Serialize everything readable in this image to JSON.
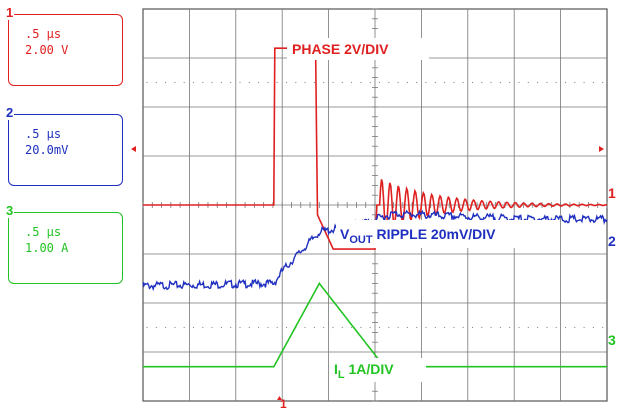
{
  "channels": [
    {
      "num": "1",
      "time": ".5 μs",
      "scale": "2.00 V",
      "color": "#e02020"
    },
    {
      "num": "2",
      "time": ".5 μs",
      "scale": "20.0mV",
      "color": "#1f2fc0"
    },
    {
      "num": "3",
      "time": ".5 μs",
      "scale": "1.00 A",
      "color": "#22c422"
    }
  ],
  "annotations": {
    "phase": "PHASE 2V/DIV",
    "vout_main": "V",
    "vout_sub": "OUT",
    "vout_rest": " RIPPLE  20mV/DIV",
    "il_main": "I",
    "il_sub": "L",
    "il_rest": "  1A/DIV"
  },
  "markers": {
    "ch1": "1",
    "ch2": "2",
    "ch3": "3",
    "trigger": "1"
  },
  "chart_data": {
    "type": "line",
    "x_unit": "μs",
    "x_per_div": 0.5,
    "divisions": {
      "x": 10,
      "y": 8
    },
    "grid": true,
    "series": [
      {
        "name": "PHASE",
        "scale_per_div": "2 V",
        "color": "#e02020",
        "points": [
          [
            0,
            4.0
          ],
          [
            1.41,
            4.0
          ],
          [
            1.42,
            7.2
          ],
          [
            1.86,
            7.2
          ],
          [
            1.88,
            3.8
          ],
          [
            2.05,
            3.1
          ],
          [
            2.5,
            3.1
          ],
          [
            2.52,
            4.0
          ],
          [
            5.0,
            4.0
          ]
        ],
        "ringing": {
          "start_us": 2.55,
          "amplitude_div": 0.55,
          "period_us": 0.09,
          "decay_us": 0.6
        }
      },
      {
        "name": "VOUT RIPPLE",
        "scale_per_div": "20 mV",
        "color": "#1f2fc0",
        "points": [
          [
            0,
            2.35
          ],
          [
            1.41,
            2.4
          ],
          [
            1.5,
            2.65
          ],
          [
            1.9,
            3.45
          ],
          [
            2.2,
            3.55
          ],
          [
            2.4,
            3.65
          ],
          [
            2.7,
            3.82
          ],
          [
            3.2,
            3.78
          ],
          [
            4.0,
            3.72
          ],
          [
            5.0,
            3.7
          ]
        ]
      },
      {
        "name": "IL",
        "scale_per_div": "1 A",
        "color": "#22c422",
        "points": [
          [
            0,
            0.7
          ],
          [
            1.41,
            0.7
          ],
          [
            1.9,
            2.4
          ],
          [
            2.6,
            0.7
          ],
          [
            5.0,
            0.7
          ]
        ]
      }
    ]
  }
}
